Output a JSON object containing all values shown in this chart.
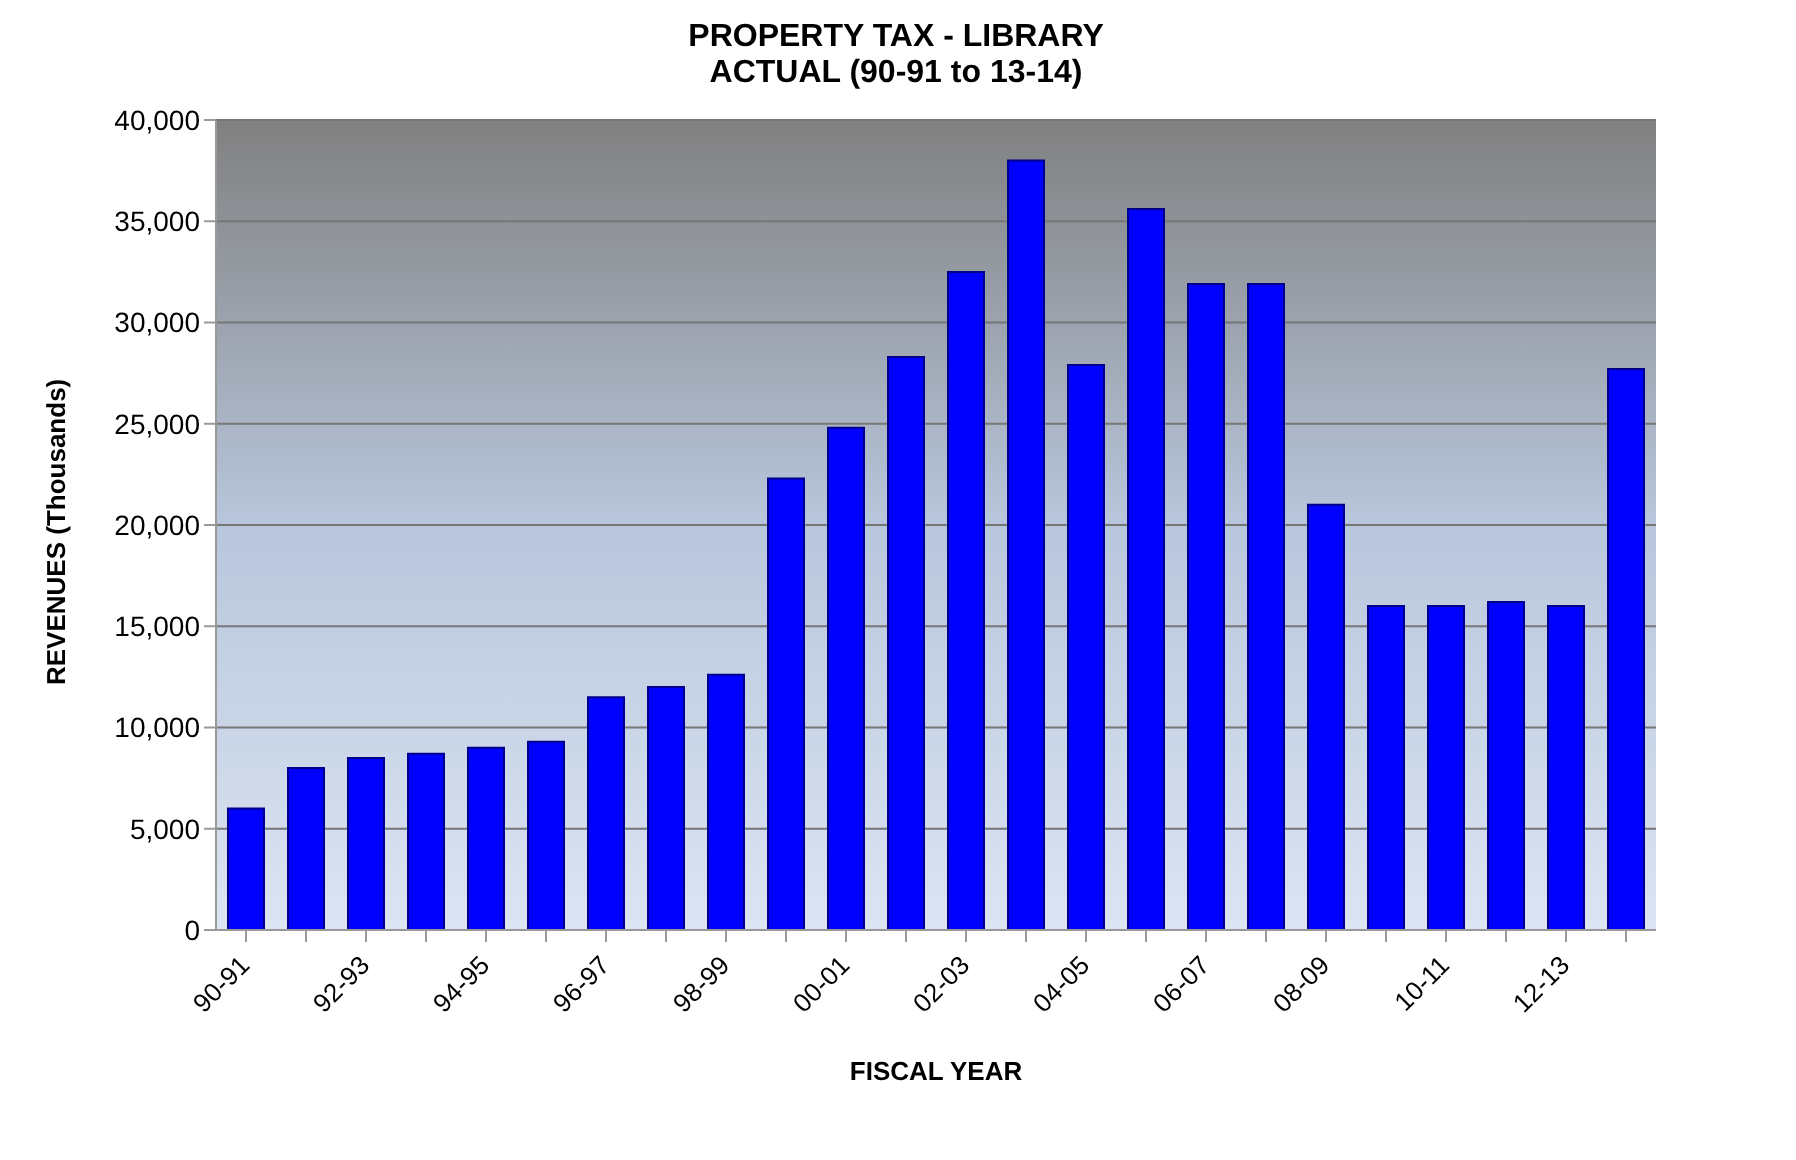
{
  "chart_data": {
    "type": "bar",
    "title": "PROPERTY TAX - LIBRARY",
    "subtitle": "ACTUAL (90-91 to 13-14)",
    "xlabel": "FISCAL YEAR",
    "ylabel": "REVENUES (Thousands)",
    "categories": [
      "90-91",
      null,
      "92-93",
      null,
      "94-95",
      null,
      "96-97",
      null,
      "98-99",
      null,
      "00-01",
      null,
      "02-03",
      null,
      "04-05",
      null,
      "06-07",
      null,
      "08-09",
      null,
      "10-11",
      null,
      "12-13",
      null
    ],
    "values": [
      6000,
      8000,
      8500,
      8700,
      9000,
      9300,
      11500,
      12000,
      12600,
      22300,
      24800,
      28300,
      32500,
      38000,
      27900,
      35600,
      31900,
      31900,
      21000,
      16000,
      16000,
      16200,
      16000,
      27700
    ],
    "color": "#0000ff",
    "ylim": [
      0,
      40000
    ],
    "yticks": [
      0,
      {
        "value": 5000,
        "label": "5,000"
      },
      {
        "value": 10000,
        "label": "10,000"
      },
      {
        "value": 15000,
        "label": "15,000"
      },
      {
        "value": 20000,
        "label": "20,000"
      },
      {
        "value": 25000,
        "label": "25,000"
      },
      {
        "value": 30000,
        "label": "30,000"
      },
      {
        "value": 35000,
        "label": "35,000"
      },
      {
        "value": 40000,
        "label": "40,000"
      }
    ],
    "grid": "y"
  }
}
